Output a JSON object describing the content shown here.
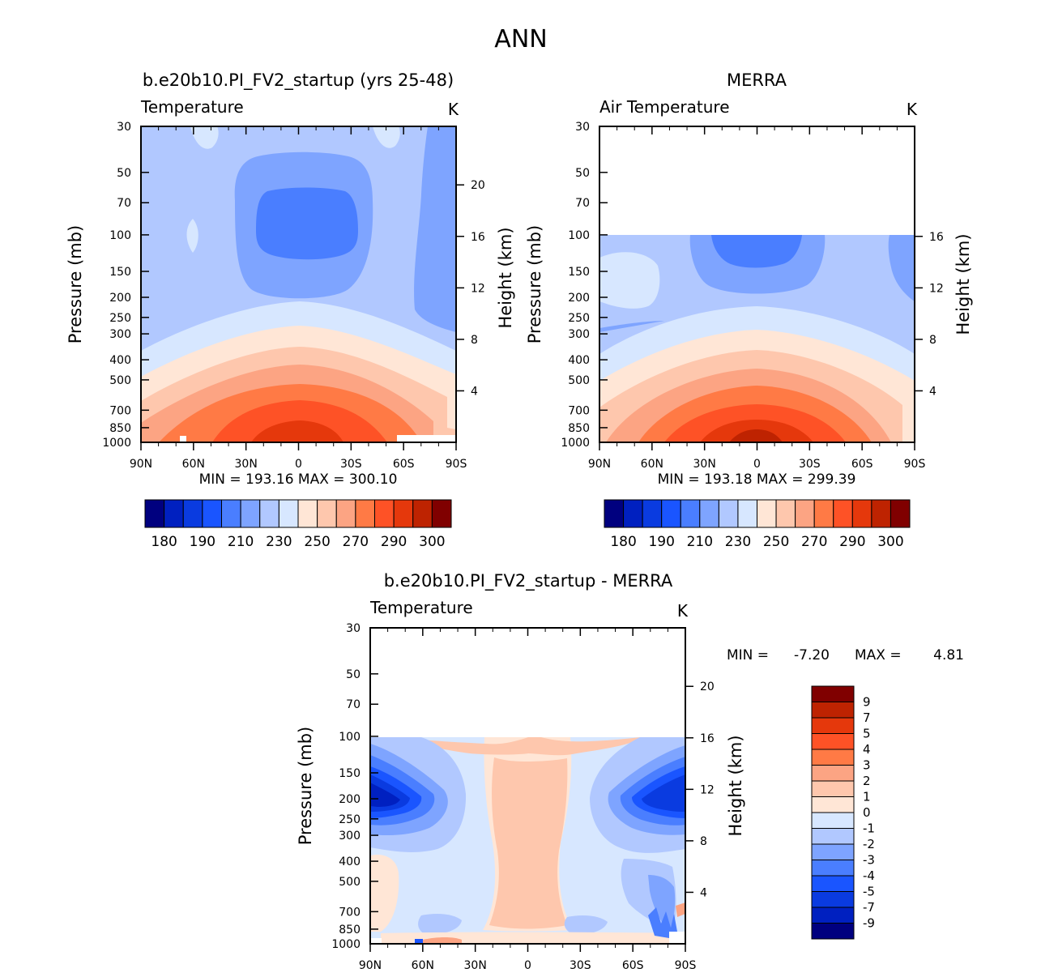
{
  "figure_title": "ANN",
  "palette_abs": [
    "#00007f",
    "#0020c0",
    "#0a3be0",
    "#1a55ff",
    "#4a7eff",
    "#7ea4ff",
    "#b1c8ff",
    "#d7e7ff",
    "#ffe6d6",
    "#fec7ad",
    "#fca483",
    "#ff7a45",
    "#fe5226",
    "#e5380c",
    "#be2301",
    "#800000"
  ],
  "palette_diff": [
    "#800000",
    "#be2301",
    "#e5380c",
    "#fe5226",
    "#ff7a45",
    "#fca483",
    "#fec7ad",
    "#ffe6d6",
    "#d7e7ff",
    "#b1c8ff",
    "#7ea4ff",
    "#4a7eff",
    "#1a55ff",
    "#0a3be0",
    "#0020c0",
    "#00007f"
  ],
  "chart_data": [
    {
      "type": "contour",
      "id": "model",
      "title": "b.e20b10.PI_FV2_startup (yrs 25-48)",
      "left_string": "Temperature",
      "right_string": "K",
      "xlabel": "",
      "ylabel": "Pressure (mb)",
      "ylabel_right": "Height (km)",
      "x_ticks": [
        "90N",
        "60N",
        "30N",
        "0",
        "30S",
        "60S",
        "90S"
      ],
      "y_ticks": [
        "30",
        "50",
        "70",
        "100",
        "150",
        "200",
        "250",
        "300",
        "400",
        "500",
        "700",
        "850",
        "1000"
      ],
      "height_ticks": [
        "20",
        "16",
        "12",
        "8",
        "4"
      ],
      "pressure_range": [
        30,
        1000
      ],
      "min_max": "MIN = 193.16   MAX = 300.10",
      "colorbar_labels": [
        "180",
        "190",
        "210",
        "230",
        "250",
        "270",
        "290",
        "300"
      ],
      "data_top_pressure": 30
    },
    {
      "type": "contour",
      "id": "obs",
      "title": "MERRA",
      "left_string": "Air Temperature",
      "right_string": "K",
      "xlabel": "",
      "ylabel": "Pressure (mb)",
      "ylabel_right": "Height (km)",
      "x_ticks": [
        "90N",
        "60N",
        "30N",
        "0",
        "30S",
        "60S",
        "90S"
      ],
      "y_ticks": [
        "30",
        "50",
        "70",
        "100",
        "150",
        "200",
        "250",
        "300",
        "400",
        "500",
        "700",
        "850",
        "1000"
      ],
      "height_ticks": [
        "16",
        "12",
        "8",
        "4"
      ],
      "pressure_range": [
        30,
        1000
      ],
      "min_max": "MIN = 193.18   MAX = 299.39",
      "colorbar_labels": [
        "180",
        "190",
        "210",
        "230",
        "250",
        "270",
        "290",
        "300"
      ],
      "data_top_pressure": 100
    },
    {
      "type": "contour",
      "id": "diff",
      "title": "b.e20b10.PI_FV2_startup - MERRA",
      "left_string": "Temperature",
      "right_string": "K",
      "xlabel": "",
      "ylabel": "Pressure (mb)",
      "ylabel_right": "Height (km)",
      "x_ticks": [
        "90N",
        "60N",
        "30N",
        "0",
        "30S",
        "60S",
        "90S"
      ],
      "y_ticks": [
        "30",
        "50",
        "70",
        "100",
        "150",
        "200",
        "250",
        "300",
        "400",
        "500",
        "700",
        "850",
        "1000"
      ],
      "height_ticks": [
        "20",
        "16",
        "12",
        "8",
        "4"
      ],
      "pressure_range": [
        30,
        1000
      ],
      "min_label": "MIN =",
      "min_value": "-7.20",
      "max_label": "MAX =",
      "max_value": "4.81",
      "colorbar_labels": [
        "9",
        "7",
        "5",
        "4",
        "3",
        "2",
        "1",
        "0",
        "-1",
        "-2",
        "-3",
        "-4",
        "-5",
        "-7",
        "-9"
      ],
      "data_top_pressure": 100
    }
  ]
}
